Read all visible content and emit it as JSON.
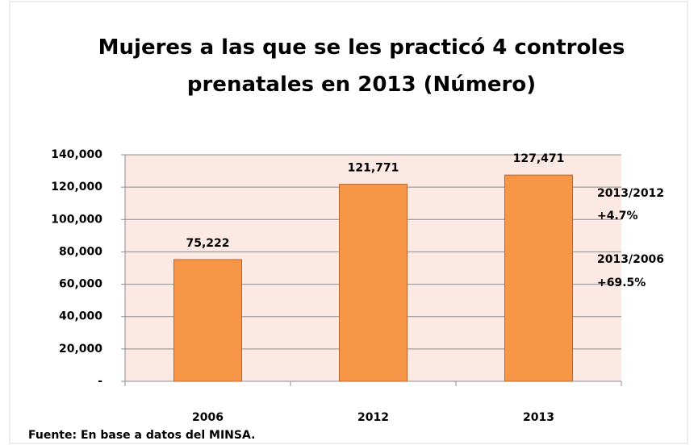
{
  "chart_data": {
    "type": "bar",
    "title": "Mujeres a las que se les practicó 4 controles prenatales en 2013 (Número)",
    "categories": [
      "2006",
      "2012",
      "2013"
    ],
    "values": [
      75222,
      121771,
      127471
    ],
    "value_labels": [
      "75,222",
      "121,771",
      "127,471"
    ],
    "color": "#f79646",
    "ylim": [
      0,
      140000
    ],
    "yticks": [
      {
        "value": 0,
        "label": "-"
      },
      {
        "value": 20000,
        "label": "20,000"
      },
      {
        "value": 40000,
        "label": "40,000"
      },
      {
        "value": 60000,
        "label": "60,000"
      },
      {
        "value": 80000,
        "label": "80,000"
      },
      {
        "value": 100000,
        "label": "100,000"
      },
      {
        "value": 120000,
        "label": "120,000"
      },
      {
        "value": 140000,
        "label": "140,000"
      }
    ],
    "grid": true,
    "annotations": [
      "2013/2012",
      "+4.7%",
      "2013/2006",
      "+69.5%"
    ],
    "source": "Fuente: En base a datos del MINSA."
  }
}
